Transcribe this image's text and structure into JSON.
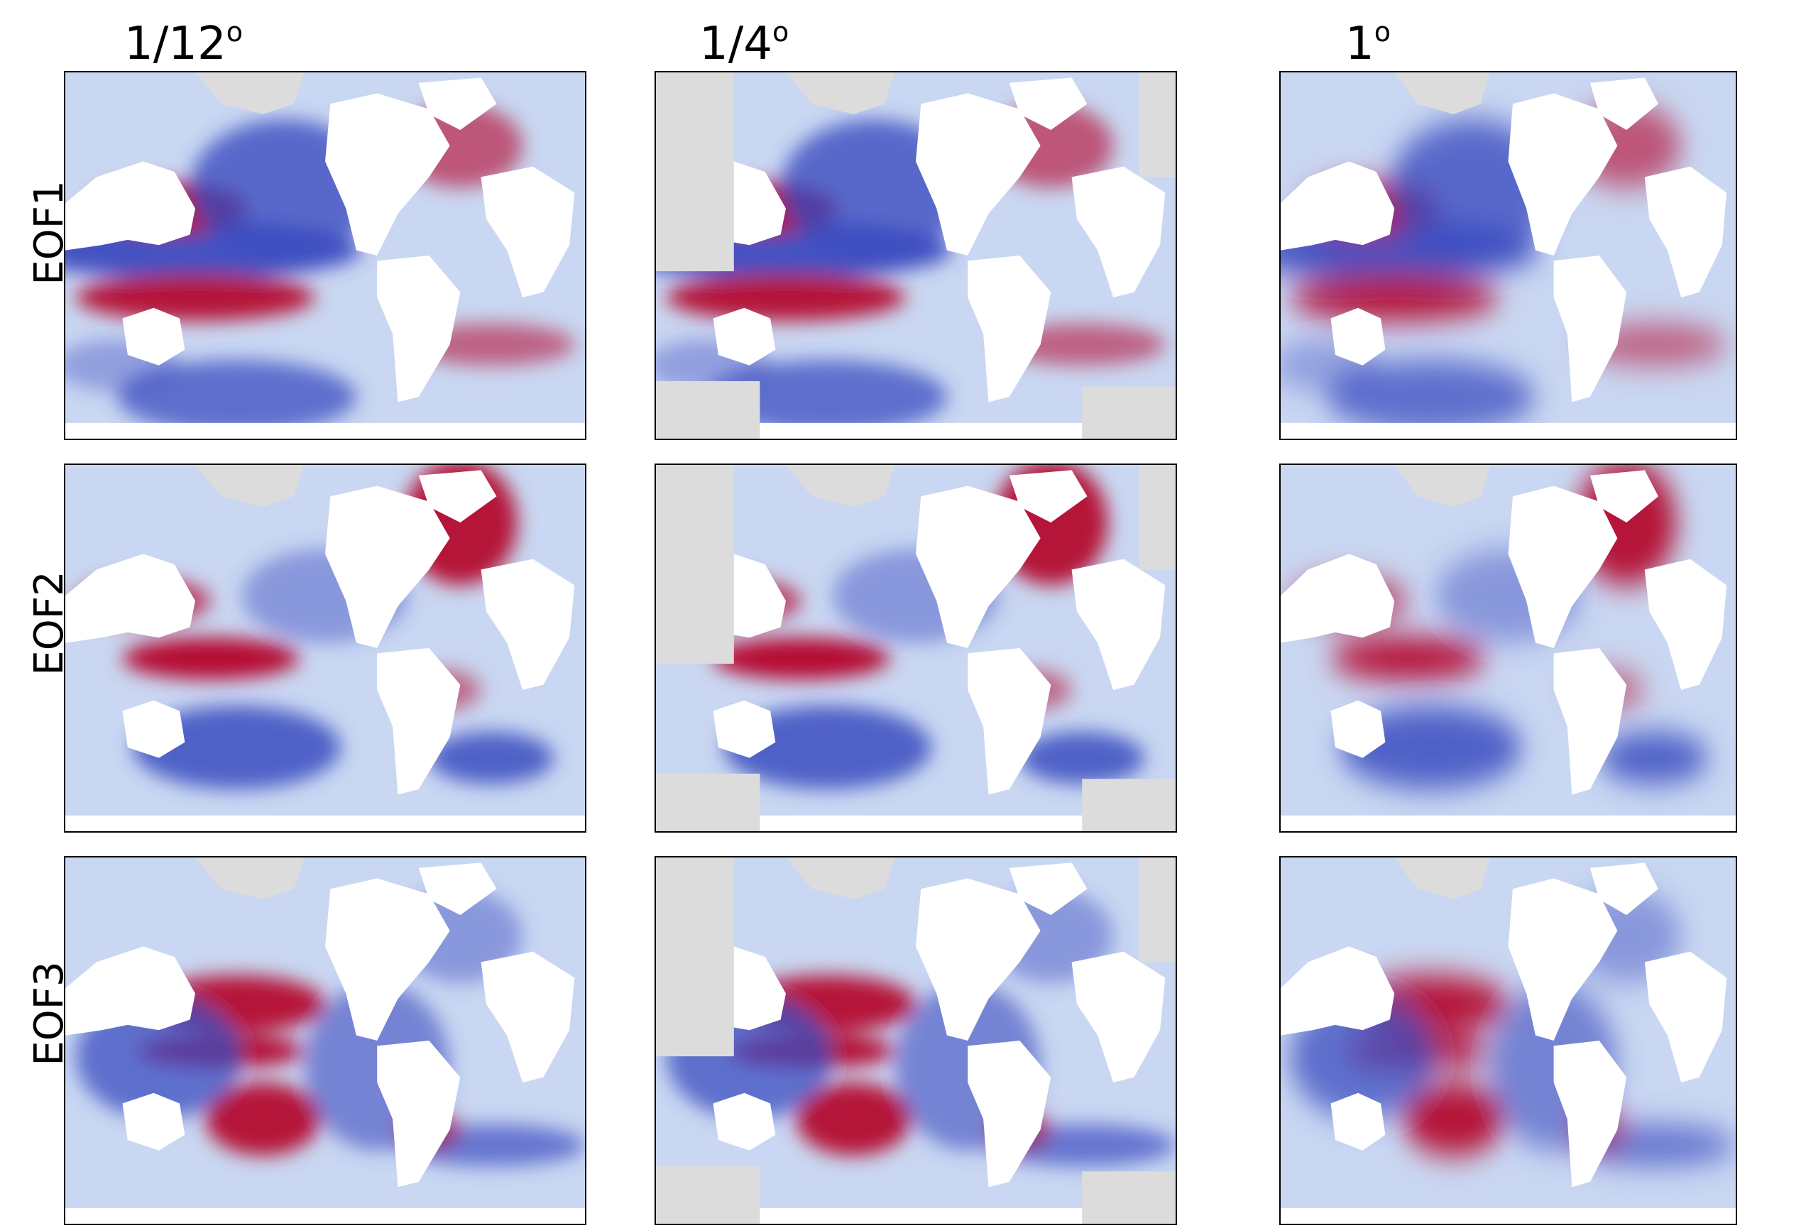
{
  "columns": [
    {
      "id": "c1",
      "label": "1/12",
      "sup": "o"
    },
    {
      "id": "c2",
      "label": "1/4",
      "sup": "o"
    },
    {
      "id": "c3",
      "label": "1",
      "sup": "o"
    }
  ],
  "rows": [
    {
      "id": "r1",
      "label": "EOF1"
    },
    {
      "id": "r2",
      "label": "EOF2"
    },
    {
      "id": "r3",
      "label": "EOF3"
    }
  ],
  "colormap": {
    "negative": "#3b4cc0",
    "neutral": "#dddcdc",
    "positive": "#b40426",
    "land": "#ffffff",
    "ice": "#dcdcdc"
  }
}
